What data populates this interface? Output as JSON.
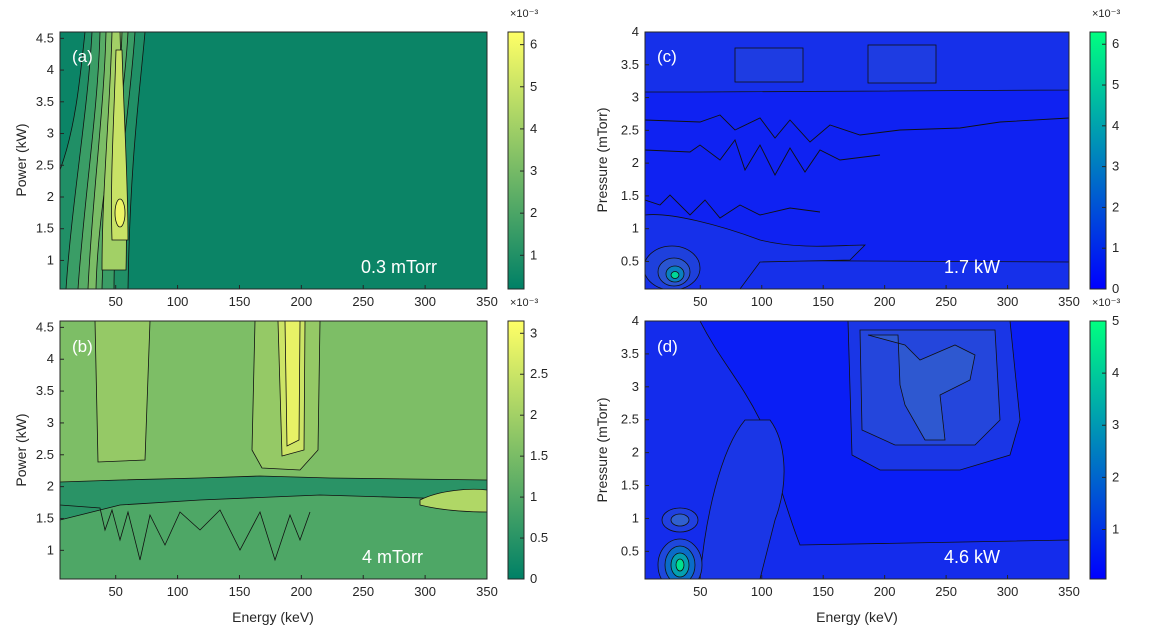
{
  "figure": {
    "panels": [
      {
        "id": "a",
        "label": "(a)",
        "annotation": "0.3 mTorr",
        "colormap": "summer",
        "xlabel": "",
        "ylabel": "Power (kW)",
        "xlim": [
          5,
          350
        ],
        "ylim": [
          0.55,
          4.6
        ],
        "xticks": [
          50,
          100,
          150,
          200,
          250,
          300,
          350
        ],
        "yticks": [
          1,
          1.5,
          2,
          2.5,
          3,
          3.5,
          4,
          4.5
        ],
        "colorbar": {
          "ticks": [
            1,
            2,
            3,
            4,
            5,
            6
          ],
          "tick_labels": [
            "1",
            "2",
            "3",
            "4",
            "5",
            "6"
          ],
          "min": 0.2,
          "max": 6.3,
          "multiplier": "×10⁻³"
        }
      },
      {
        "id": "b",
        "label": "(b)",
        "annotation": "4 mTorr",
        "colormap": "summer",
        "xlabel": "Energy (keV)",
        "ylabel": "Power (kW)",
        "xlim": [
          5,
          350
        ],
        "ylim": [
          0.55,
          4.6
        ],
        "xticks": [
          50,
          100,
          150,
          200,
          250,
          300,
          350
        ],
        "yticks": [
          1,
          1.5,
          2,
          2.5,
          3,
          3.5,
          4,
          4.5
        ],
        "colorbar": {
          "ticks": [
            0,
            0.5,
            1,
            1.5,
            2,
            2.5,
            3
          ],
          "tick_labels": [
            "0",
            "0.5",
            "1",
            "1.5",
            "2",
            "2.5",
            "3"
          ],
          "min": 0,
          "max": 3.15,
          "multiplier": "×10⁻³"
        }
      },
      {
        "id": "c",
        "label": "(c)",
        "annotation": "1.7 kW",
        "colormap": "winter",
        "xlabel": "",
        "ylabel": "Pressure (mTorr)",
        "xlim": [
          5,
          350
        ],
        "ylim": [
          0.08,
          4.0
        ],
        "xticks": [
          50,
          100,
          150,
          200,
          250,
          300,
          350
        ],
        "yticks": [
          0.5,
          1,
          1.5,
          2,
          2.5,
          3,
          3.5,
          4
        ],
        "colorbar": {
          "ticks": [
            0,
            1,
            2,
            3,
            4,
            5,
            6
          ],
          "tick_labels": [
            "0",
            "1",
            "2",
            "3",
            "4",
            "5",
            "6"
          ],
          "min": 0,
          "max": 6.3,
          "multiplier": "×10⁻³"
        }
      },
      {
        "id": "d",
        "label": "(d)",
        "annotation": "4.6 kW",
        "colormap": "winter",
        "xlabel": "Energy (keV)",
        "ylabel": "Pressure (mTorr)",
        "xlim": [
          5,
          350
        ],
        "ylim": [
          0.08,
          4.0
        ],
        "xticks": [
          50,
          100,
          150,
          200,
          250,
          300,
          350
        ],
        "yticks": [
          0.5,
          1,
          1.5,
          2,
          2.5,
          3,
          3.5,
          4
        ],
        "colorbar": {
          "ticks": [
            1,
            2,
            3,
            4,
            5
          ],
          "tick_labels": [
            "1",
            "2",
            "3",
            "4",
            "5"
          ],
          "min": 0.05,
          "max": 5.0,
          "multiplier": "×10⁻³"
        }
      }
    ]
  },
  "chart_data": [
    {
      "panel": "a",
      "type": "heatmap",
      "title": "",
      "xlabel": "",
      "ylabel": "Power (kW)",
      "xlim": [
        5,
        350
      ],
      "ylim": [
        0.55,
        4.6
      ],
      "grid": false,
      "colorbar_range": [
        0.2,
        6.3
      ],
      "colorbar_multiplier": "×10⁻³",
      "features": [
        {
          "description": "main ridge",
          "x": 60,
          "y": 1.75,
          "value": 6.2
        }
      ]
    },
    {
      "panel": "b",
      "type": "heatmap",
      "title": "",
      "xlabel": "Energy (keV)",
      "ylabel": "Power (kW)",
      "xlim": [
        5,
        350
      ],
      "ylim": [
        0.55,
        4.6
      ],
      "grid": false,
      "colorbar_range": [
        0,
        3.15
      ],
      "colorbar_multiplier": "×10⁻³",
      "features": [
        {
          "description": "peak band",
          "x": 200,
          "y": 3.5,
          "value": 3.0
        },
        {
          "description": "secondary band",
          "x": 110,
          "y": 3.5,
          "value": 2.0
        },
        {
          "description": "secondary band",
          "x": 235,
          "y": 3.0,
          "value": 1.9
        },
        {
          "description": "hot spot",
          "x": 345,
          "y": 1.8,
          "value": 2.3
        }
      ]
    },
    {
      "panel": "c",
      "type": "heatmap",
      "title": "",
      "xlabel": "",
      "ylabel": "Pressure (mTorr)",
      "xlim": [
        5,
        350
      ],
      "ylim": [
        0.08,
        4.0
      ],
      "grid": false,
      "colorbar_range": [
        0,
        6.3
      ],
      "colorbar_multiplier": "×10⁻³",
      "features": [
        {
          "description": "peak",
          "x": 60,
          "y": 0.28,
          "value": 6.0
        }
      ]
    },
    {
      "panel": "d",
      "type": "heatmap",
      "title": "",
      "xlabel": "Energy (keV)",
      "ylabel": "Pressure (mTorr)",
      "xlim": [
        5,
        350
      ],
      "ylim": [
        0.08,
        4.0
      ],
      "grid": false,
      "colorbar_range": [
        0.05,
        5.0
      ],
      "colorbar_multiplier": "×10⁻³",
      "features": [
        {
          "description": "peak",
          "x": 60,
          "y": 0.4,
          "value": 4.8
        },
        {
          "description": "secondary",
          "x": 60,
          "y": 1.0,
          "value": 2.0
        },
        {
          "description": "plateau",
          "x": 200,
          "y": 3.0,
          "value": 1.5
        },
        {
          "description": "plateau",
          "x": 240,
          "y": 2.8,
          "value": 1.3
        }
      ]
    }
  ]
}
